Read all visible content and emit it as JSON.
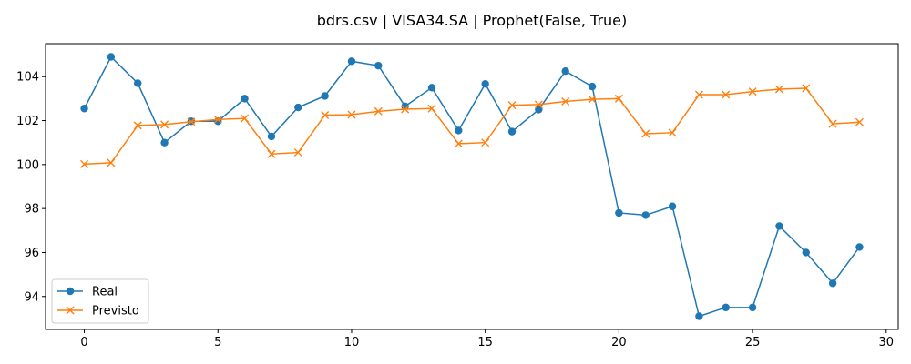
{
  "chart_data": {
    "type": "line",
    "title": "bdrs.csv | VISA34.SA | Prophet(False, True)",
    "xlabel": "",
    "ylabel": "",
    "xlim": [
      -1.45,
      30.45
    ],
    "ylim": [
      92.5,
      105.5
    ],
    "xticks": [
      0,
      5,
      10,
      15,
      20,
      25,
      30
    ],
    "yticks": [
      94,
      96,
      98,
      100,
      102,
      104
    ],
    "grid": false,
    "legend_position": "lower-left",
    "x": [
      0,
      1,
      2,
      3,
      4,
      5,
      6,
      7,
      8,
      9,
      10,
      11,
      12,
      13,
      14,
      15,
      16,
      17,
      18,
      19,
      20,
      21,
      22,
      23,
      24,
      25,
      26,
      27,
      28,
      29
    ],
    "series": [
      {
        "name": "Real",
        "color": "#1f77b4",
        "marker": "circle",
        "values": [
          102.55,
          104.9,
          103.7,
          101.0,
          101.97,
          101.97,
          103.0,
          101.28,
          102.6,
          103.12,
          104.7,
          104.5,
          102.65,
          103.5,
          101.55,
          103.67,
          101.5,
          102.5,
          104.25,
          103.55,
          97.8,
          97.7,
          98.1,
          93.1,
          93.5,
          93.5,
          97.2,
          96.0,
          94.6,
          96.25
        ]
      },
      {
        "name": "Previsto",
        "color": "#ff7f0e",
        "marker": "x",
        "values": [
          100.02,
          100.08,
          101.78,
          101.82,
          101.95,
          102.05,
          102.1,
          100.48,
          100.55,
          102.25,
          102.27,
          102.42,
          102.52,
          102.55,
          100.95,
          101.0,
          102.7,
          102.73,
          102.87,
          102.97,
          103.0,
          101.4,
          101.45,
          103.18,
          103.18,
          103.32,
          103.43,
          103.47,
          101.85,
          101.93
        ]
      }
    ]
  }
}
